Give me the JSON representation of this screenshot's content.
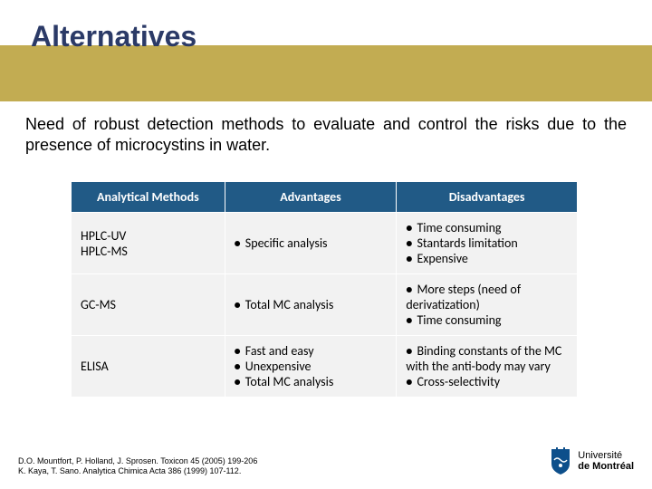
{
  "title": "Alternatives",
  "intro": "Need of robust detection methods to evaluate and control the risks due to the presence of microcystins in water.",
  "colors": {
    "header_bg": "#215a86",
    "header_text": "#ffffff",
    "cell_bg": "#f2f2f2",
    "gold_band": "#c2ac52",
    "title_color": "#2b3a67"
  },
  "table": {
    "headers": [
      "Analytical Methods",
      "Advantages",
      "Disadvantages"
    ],
    "rows": [
      {
        "method": "HPLC-UV\nHPLC-MS",
        "advantages": [
          "Specific analysis"
        ],
        "disadvantages": [
          "Time consuming",
          "Stantards limitation",
          "Expensive"
        ]
      },
      {
        "method": "GC-MS",
        "advantages": [
          "Total MC analysis"
        ],
        "disadvantages": [
          "More steps (need of derivatization)",
          "Time consuming"
        ]
      },
      {
        "method": "ELISA",
        "advantages": [
          "Fast and easy",
          "Unexpensive",
          "Total MC analysis"
        ],
        "disadvantages": [
          "Binding constants of the MC with the anti-body may vary",
          "Cross-selectivity"
        ]
      }
    ]
  },
  "refs": {
    "line1": "D.O. Mountfort, P. Holland, J. Sprosen. Toxicon 45 (2005) 199-206",
    "line2": "K. Kaya, T. Sano. Analytica Chimica Acta 386 (1999) 107-112."
  },
  "logo": {
    "line1": "Université",
    "line2": "de Montréal",
    "badge_color": "#0d4f8b"
  }
}
